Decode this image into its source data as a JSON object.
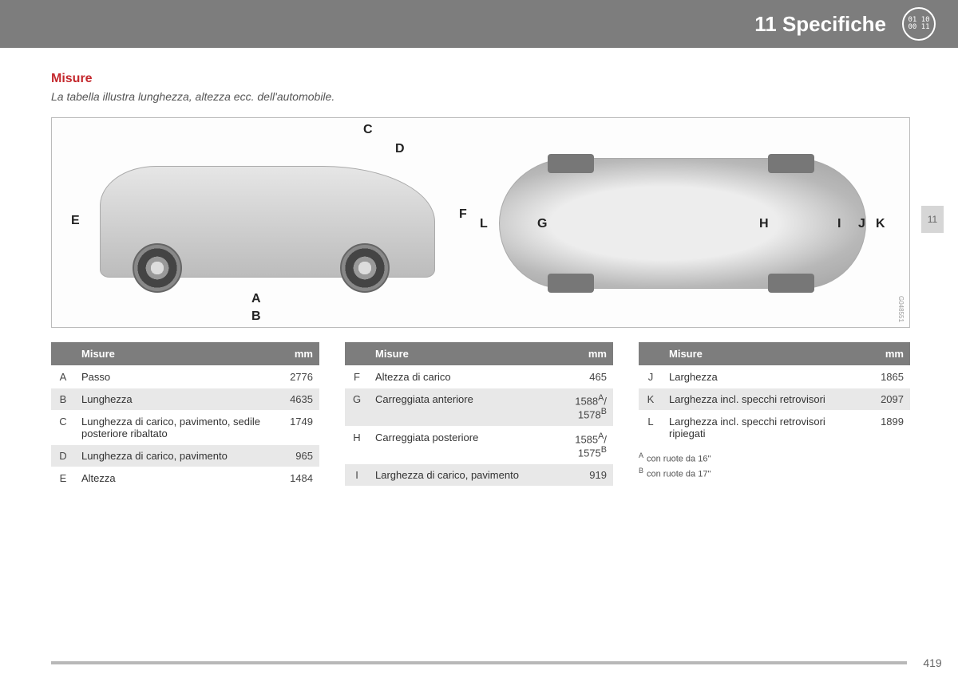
{
  "header": {
    "title": "11 Specifiche",
    "icon_top": "01 10",
    "icon_bottom": "00 11"
  },
  "side_tab": "11",
  "section": {
    "title": "Misure",
    "subtitle": "La tabella illustra lunghezza, altezza ecc. dell'automobile."
  },
  "diagram": {
    "labels": [
      "A",
      "B",
      "C",
      "D",
      "E",
      "F",
      "G",
      "H",
      "I",
      "J",
      "K",
      "L"
    ],
    "image_code": "G048551"
  },
  "tables": {
    "header_measure": "Misure",
    "header_mm": "mm",
    "col1": [
      {
        "letter": "A",
        "label": "Passo",
        "value": "2776"
      },
      {
        "letter": "B",
        "label": "Lunghezza",
        "value": "4635"
      },
      {
        "letter": "C",
        "label": "Lunghezza di carico, pavimento, sedile posteriore ribaltato",
        "value": "1749"
      },
      {
        "letter": "D",
        "label": "Lunghezza di carico, pavimento",
        "value": "965"
      },
      {
        "letter": "E",
        "label": "Altezza",
        "value": "1484"
      }
    ],
    "col2": [
      {
        "letter": "F",
        "label": "Altezza di carico",
        "value": "465"
      },
      {
        "letter": "G",
        "label": "Carreggiata anteriore",
        "value": "1588<sup>A</sup>/<br>1578<sup>B</sup>"
      },
      {
        "letter": "H",
        "label": "Carreggiata posteriore",
        "value": "1585<sup>A</sup>/<br>1575<sup>B</sup>"
      },
      {
        "letter": "I",
        "label": "Larghezza di carico, pavimento",
        "value": "919"
      }
    ],
    "col3": [
      {
        "letter": "J",
        "label": "Larghezza",
        "value": "1865"
      },
      {
        "letter": "K",
        "label": "Larghezza incl. specchi retrovisori",
        "value": "2097"
      },
      {
        "letter": "L",
        "label": "Larghezza incl. specchi retrovisori ripiegati",
        "value": "1899"
      }
    ]
  },
  "footnotes": [
    {
      "key": "A",
      "text": "con ruote da 16\""
    },
    {
      "key": "B",
      "text": "con ruote da 17\""
    }
  ],
  "page_number": "419"
}
